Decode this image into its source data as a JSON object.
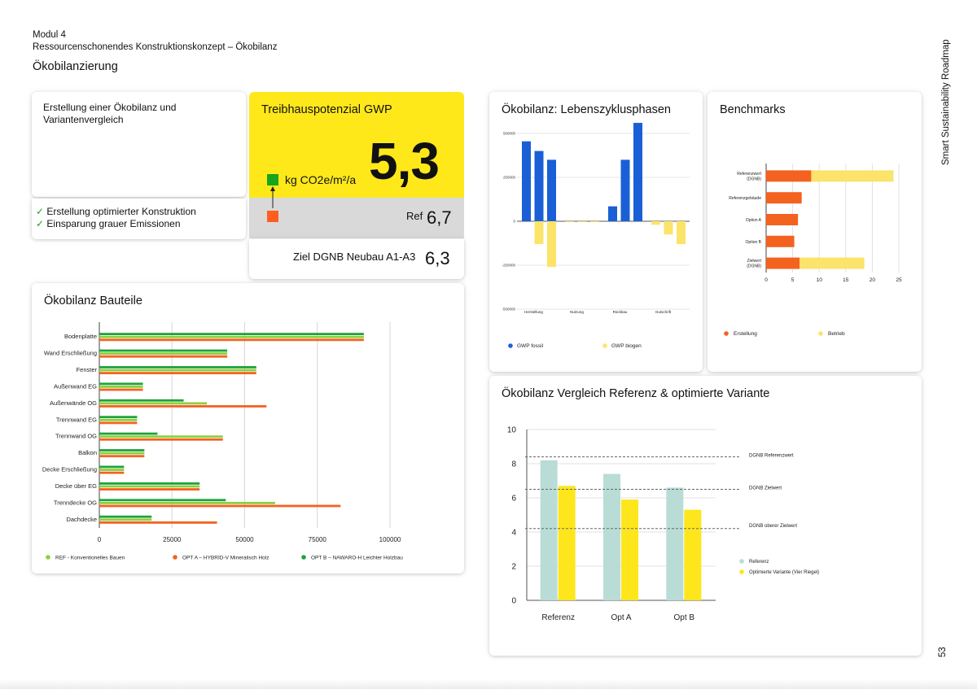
{
  "header": {
    "module": "Modul 4",
    "subtitle": "Ressourcenschonendes Konstruktionskonzept – Ökobilanz",
    "section": "Ökobilanzierung"
  },
  "side": {
    "vertical_title": "Smart Sustainability Roadmap",
    "page_number": "53"
  },
  "card_oekobilanz": {
    "title": "Erstellung einer Ökobilanz und Variantenvergleich",
    "checks": [
      "Erstellung optimierter Konstruktion",
      "Einsparung grauer Emissionen"
    ]
  },
  "gwp": {
    "title": "Treibhauspotenzial GWP",
    "unit": "kg CO2e/m²/a",
    "value": "5,3",
    "ref_label": "Ref",
    "ref_value": "6,7",
    "target_label": "Ziel DGNB Neubau A1-A3",
    "target_value": "6,3",
    "colors": {
      "yellow": "#ffe81a",
      "green": "#18a41c",
      "orange": "#ff5e1f",
      "grey": "#d9d9d9"
    }
  },
  "chart_bauteile": {
    "title": "Ökobilanz Bauteile",
    "chart_data": {
      "type": "bar",
      "orientation": "horizontal",
      "categories": [
        "Bodenplatte",
        "Wand Erschließung",
        "Fenster",
        "Außenwand EG",
        "Außenwände OG",
        "Trennwand EG",
        "Trennwand OG",
        "Balkon",
        "Decke Erschließung",
        "Decke über EG",
        "Trenndecke OG",
        "Dachdecke"
      ],
      "series": [
        {
          "name": "OPT B – NAWARO-H Leichter Holzbau",
          "color": "#1ea33a",
          "values": [
            91000,
            44000,
            54000,
            15000,
            29000,
            13000,
            20000,
            15500,
            8500,
            34500,
            43500,
            18000
          ]
        },
        {
          "name": "REF - Konventionelles Bauen",
          "color": "#8ccf3e",
          "values": [
            91000,
            44000,
            54000,
            15000,
            37000,
            13000,
            42500,
            15500,
            8500,
            34500,
            60500,
            18000
          ]
        },
        {
          "name": "OPT A – HYBRID-V Mineralisch Holz",
          "color": "#f4621f",
          "values": [
            91000,
            44000,
            54000,
            15000,
            57500,
            13000,
            42500,
            15500,
            8500,
            34500,
            83000,
            40500
          ]
        }
      ],
      "legend_order": [
        1,
        2,
        0
      ],
      "xlim": [
        0,
        100000
      ],
      "xticks": [
        0,
        25000,
        50000,
        75000,
        100000
      ],
      "grid": true,
      "legend": "bottom"
    }
  },
  "chart_lebenszyklus": {
    "title": "Ökobilanz: Lebenszyklusphasen",
    "chart_data": {
      "type": "bar",
      "groups": [
        "Herstellung",
        "Nutzung",
        "Rückbau",
        "Gutschrift"
      ],
      "series": [
        {
          "name": "GWP fossil",
          "color": "#1a5fd6",
          "values": [
            [
              455000,
              400000,
              350000
            ],
            [
              0,
              0,
              0
            ],
            [
              85000,
              350000,
              560000
            ],
            [
              0,
              0,
              0
            ]
          ]
        },
        {
          "name": "GWP biogen",
          "color": "#fce469",
          "values": [
            [
              0,
              -130000,
              -260000
            ],
            [
              -5000,
              -5000,
              -5000
            ],
            [
              0,
              0,
              0
            ],
            [
              -20000,
              -75000,
              -130000
            ]
          ]
        }
      ],
      "ylim": [
        -500000,
        500000
      ],
      "yticks": [
        -500000,
        -250000,
        0,
        250000,
        500000
      ],
      "grid": true,
      "legend": "bottom"
    }
  },
  "chart_benchmarks": {
    "title": "Benchmarks",
    "chart_data": {
      "type": "bar",
      "orientation": "horizontal",
      "stacked": true,
      "categories": [
        "Referenzwert (DGNB)",
        "Referenzgebäude",
        "Option A",
        "Option B",
        "Zielwert (DGNB)"
      ],
      "series": [
        {
          "name": "Erstellung",
          "color": "#f4621f",
          "values": [
            8.5,
            6.7,
            6.0,
            5.3,
            6.3
          ]
        },
        {
          "name": "Betrieb",
          "color": "#fbe36c",
          "values": [
            15.5,
            0,
            0,
            0,
            12.2
          ]
        }
      ],
      "xlim": [
        0,
        25
      ],
      "xticks": [
        0,
        5,
        10,
        15,
        20,
        25
      ],
      "grid": true,
      "legend": "bottom"
    }
  },
  "chart_vergleich": {
    "title": "Ökobilanz Vergleich Referenz & optimierte Variante",
    "chart_data": {
      "type": "bar",
      "categories": [
        "Referenz",
        "Opt A",
        "Opt B"
      ],
      "series": [
        {
          "name": "Referenz",
          "color": "#b9dcd6",
          "values": [
            8.2,
            7.4,
            6.6
          ]
        },
        {
          "name": "Optimierte Variante (Vier Riegel)",
          "color": "#fde61c",
          "values": [
            6.7,
            5.9,
            5.3
          ]
        }
      ],
      "reference_lines": [
        {
          "label": "DGNB Referenzwert",
          "value": 8.4
        },
        {
          "label": "DGNB Zielwert",
          "value": 6.5
        },
        {
          "label": "DGNB oberer Zielwert",
          "value": 4.2
        }
      ],
      "ylim": [
        0,
        10
      ],
      "yticks": [
        0,
        2,
        4,
        6,
        8,
        10
      ],
      "grid": true,
      "legend": "right"
    }
  }
}
